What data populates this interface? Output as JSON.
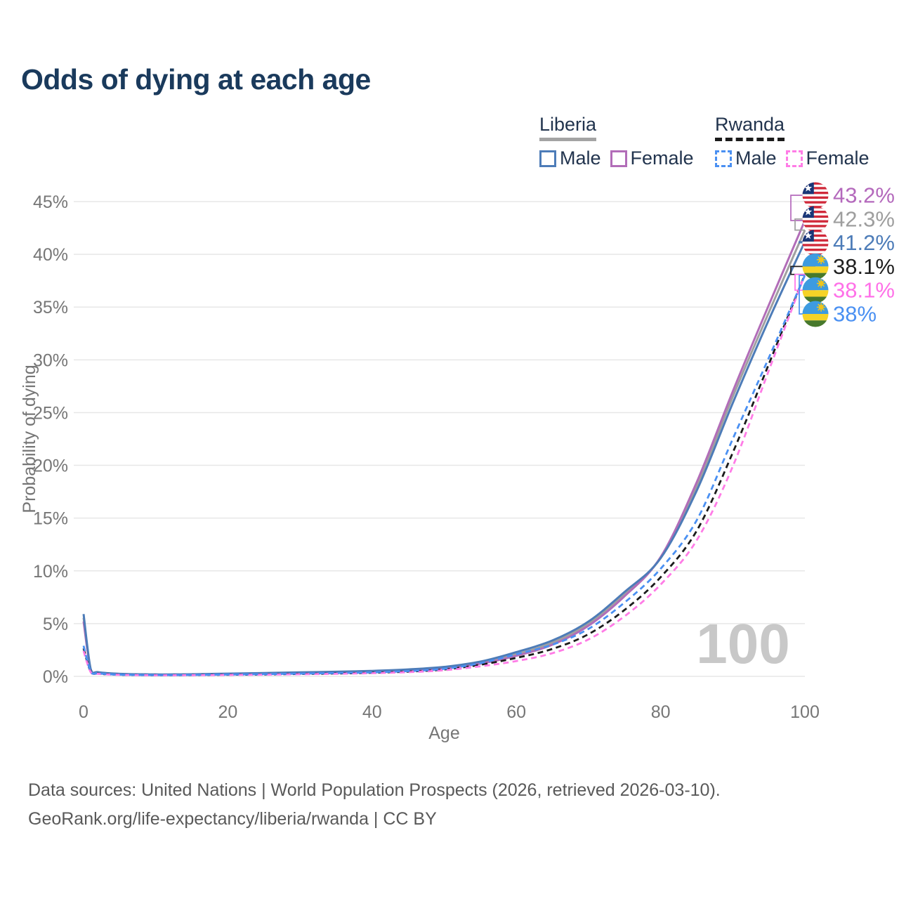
{
  "header": {
    "title": "Odds of dying at each age"
  },
  "legend": {
    "groups": [
      {
        "name": "Liberia",
        "line_style": "solid",
        "underline_color": "#a3a3a3",
        "items": [
          {
            "label": "Male",
            "color": "#4d7cb8",
            "dashed": false
          },
          {
            "label": "Female",
            "color": "#b26db8",
            "dashed": false
          }
        ]
      },
      {
        "name": "Rwanda",
        "line_style": "dashed",
        "underline_color": "#1b1b1b",
        "items": [
          {
            "label": "Male",
            "color": "#4a90f2",
            "dashed": true
          },
          {
            "label": "Female",
            "color": "#ff7ce6",
            "dashed": true
          }
        ]
      }
    ]
  },
  "watermark": "100",
  "footer": {
    "line1": "Data sources: United Nations | World Population Prospects (2026, retrieved 2026-03-10).",
    "line2": "GeoRank.org/life-expectancy/liberia/rwanda | CC BY"
  },
  "chart_data": {
    "type": "line",
    "title": "Odds of dying at each age",
    "xlabel": "Age",
    "ylabel": "Probability of dying",
    "xlim": [
      0,
      100
    ],
    "ylim_percent": [
      0,
      45
    ],
    "grid": "horizontal",
    "legend_position": "top-right",
    "x_ticks": [
      0,
      20,
      40,
      60,
      80,
      100
    ],
    "x_tick_labels": [
      "0",
      "20",
      "40",
      "60",
      "80",
      "100"
    ],
    "y_ticks_percent": [
      0,
      5,
      10,
      15,
      20,
      25,
      30,
      35,
      40,
      45
    ],
    "y_tick_labels": [
      "0%",
      "5%",
      "10%",
      "15%",
      "20%",
      "25%",
      "30%",
      "35%",
      "40%",
      "45%"
    ],
    "ages": [
      0,
      1,
      2,
      5,
      10,
      15,
      20,
      25,
      30,
      35,
      40,
      45,
      50,
      55,
      60,
      65,
      70,
      75,
      80,
      85,
      90,
      95,
      100
    ],
    "series": [
      {
        "name": "Liberia",
        "country": "Liberia",
        "sex": "Both",
        "color": "#a0a0a0",
        "dash": "solid",
        "end_label": "42.3%",
        "values": [
          5.55,
          0.62,
          0.38,
          0.23,
          0.17,
          0.18,
          0.23,
          0.29,
          0.34,
          0.4,
          0.48,
          0.61,
          0.84,
          1.3,
          2.1,
          3.2,
          5.0,
          7.8,
          11.25,
          18.0,
          26.5,
          34.5,
          42.3
        ]
      },
      {
        "name": "Liberia Female",
        "country": "Liberia",
        "sex": "Female",
        "color": "#b26db8",
        "dash": "solid",
        "end_label": "43.2%",
        "values": [
          5.2,
          0.58,
          0.36,
          0.22,
          0.16,
          0.17,
          0.21,
          0.26,
          0.31,
          0.37,
          0.45,
          0.57,
          0.78,
          1.2,
          1.95,
          3.0,
          4.8,
          7.6,
          11.3,
          18.4,
          27.0,
          35.2,
          43.2
        ]
      },
      {
        "name": "Liberia Male",
        "country": "Liberia",
        "sex": "Male",
        "color": "#4d7cb8",
        "dash": "solid",
        "end_label": "41.2%",
        "values": [
          5.9,
          0.65,
          0.4,
          0.24,
          0.18,
          0.2,
          0.26,
          0.32,
          0.38,
          0.44,
          0.52,
          0.66,
          0.9,
          1.4,
          2.3,
          3.4,
          5.2,
          8.0,
          11.2,
          17.6,
          25.9,
          33.8,
          41.2
        ]
      },
      {
        "name": "Rwanda",
        "country": "Rwanda",
        "sex": "Both",
        "color": "#1b1b1b",
        "dash": "dashed",
        "end_label": "38.1%",
        "values": [
          2.65,
          0.42,
          0.26,
          0.15,
          0.11,
          0.12,
          0.15,
          0.18,
          0.23,
          0.27,
          0.34,
          0.45,
          0.65,
          1.1,
          1.75,
          2.6,
          4.0,
          6.3,
          9.4,
          13.8,
          21.2,
          29.6,
          38.1
        ]
      },
      {
        "name": "Rwanda Female",
        "country": "Rwanda",
        "sex": "Female",
        "color": "#ff7ce6",
        "dash": "dashed",
        "end_label": "38.1%",
        "values": [
          2.4,
          0.38,
          0.24,
          0.14,
          0.1,
          0.11,
          0.13,
          0.16,
          0.2,
          0.24,
          0.3,
          0.4,
          0.58,
          0.95,
          1.45,
          2.2,
          3.5,
          5.7,
          8.7,
          12.9,
          19.9,
          29.0,
          38.1
        ]
      },
      {
        "name": "Rwanda Male",
        "country": "Rwanda",
        "sex": "Male",
        "color": "#4a90f2",
        "dash": "dashed",
        "end_label": "38%",
        "values": [
          2.9,
          0.45,
          0.28,
          0.16,
          0.12,
          0.13,
          0.17,
          0.21,
          0.26,
          0.31,
          0.38,
          0.5,
          0.72,
          1.25,
          2.1,
          3.0,
          4.5,
          7.0,
          10.2,
          14.8,
          22.5,
          30.2,
          38.0
        ]
      }
    ],
    "end_labels": [
      {
        "series": "Liberia Female",
        "flag": "liberia",
        "text": "43.2%",
        "color": "#b469bc",
        "value": 43.2
      },
      {
        "series": "Liberia",
        "flag": "liberia",
        "text": "42.3%",
        "color": "#9e9e9e",
        "value": 42.3
      },
      {
        "series": "Liberia Male",
        "flag": "liberia",
        "text": "41.2%",
        "color": "#4d7cb8",
        "value": 41.2
      },
      {
        "series": "Rwanda",
        "flag": "rwanda",
        "text": "38.1%",
        "color": "#1f1f1f",
        "value": 38.1
      },
      {
        "series": "Rwanda Female",
        "flag": "rwanda",
        "text": "38.1%",
        "color": "#ff70e8",
        "value": 38.1
      },
      {
        "series": "Rwanda Male",
        "flag": "rwanda",
        "text": "38%",
        "color": "#4a90f2",
        "value": 38.0
      }
    ]
  }
}
